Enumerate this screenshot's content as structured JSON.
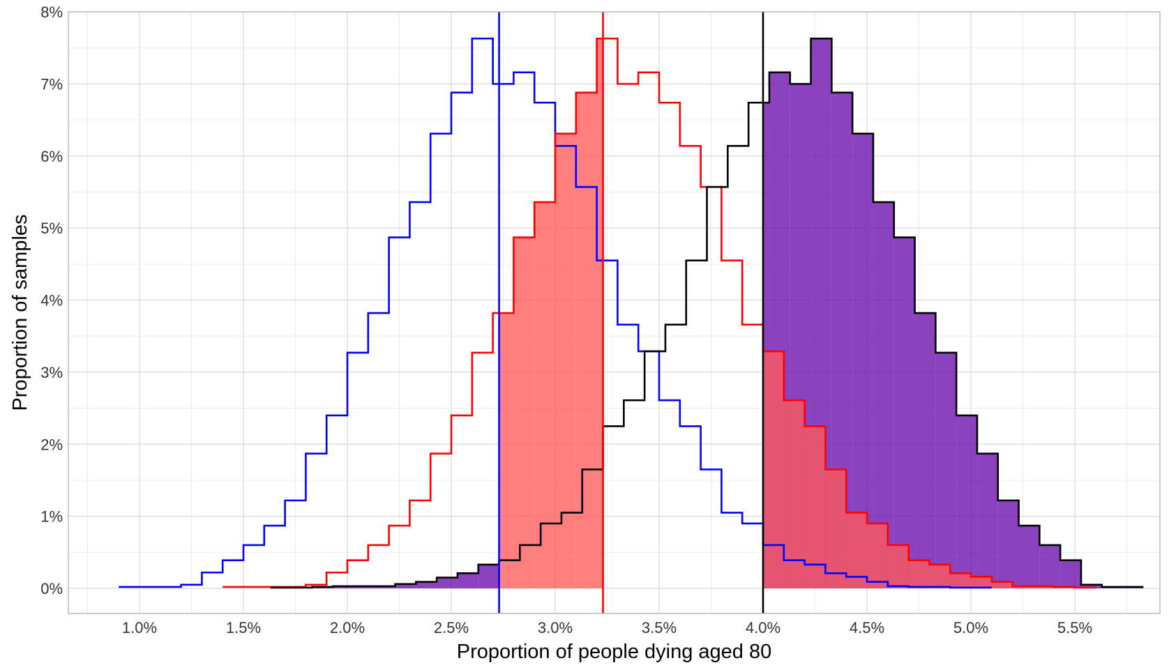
{
  "chart_data": {
    "type": "histogram",
    "title": "",
    "xlabel": "Proportion of people dying aged 80",
    "ylabel": "Proportion of samples",
    "xlim": [
      0.0075,
      0.058
    ],
    "ylim": [
      -0.0035,
      0.08
    ],
    "x_ticks": [
      0.01,
      0.015,
      0.02,
      0.025,
      0.03,
      0.035,
      0.04,
      0.045,
      0.05,
      0.055
    ],
    "x_tick_labels": [
      "1.0%",
      "1.5%",
      "2.0%",
      "2.5%",
      "3.0%",
      "3.5%",
      "4.0%",
      "4.5%",
      "5.0%",
      "5.5%"
    ],
    "y_ticks": [
      0,
      0.01,
      0.02,
      0.03,
      0.04,
      0.05,
      0.06,
      0.07,
      0.08
    ],
    "y_tick_labels": [
      "0%",
      "1%",
      "2%",
      "3%",
      "4%",
      "5%",
      "6%",
      "7%",
      "8%"
    ],
    "grid": true,
    "legend": "none",
    "bin_width": 0.001,
    "series": [
      {
        "color": "#0000ff",
        "start": 0.009,
        "values": [
          0.0002,
          0.0002,
          0.0002,
          0.0005,
          0.0022,
          0.0039,
          0.006,
          0.0087,
          0.0122,
          0.0187,
          0.024,
          0.0327,
          0.0382,
          0.0487,
          0.0536,
          0.0631,
          0.0688,
          0.0763,
          0.07,
          0.0716,
          0.0674,
          0.0614,
          0.0557,
          0.0455,
          0.0366,
          0.0329,
          0.0261,
          0.0225,
          0.0165,
          0.0105,
          0.009,
          0.006,
          0.0039,
          0.0033,
          0.0021,
          0.0016,
          0.0009,
          0.0003,
          0.0002,
          0.0002,
          0.0001,
          0.0001
        ]
      },
      {
        "color": "#ff0000",
        "start": 0.014,
        "values": [
          0.0002,
          0.0002,
          0.0002,
          0.0002,
          0.0005,
          0.0022,
          0.0039,
          0.006,
          0.0087,
          0.0122,
          0.0187,
          0.024,
          0.0327,
          0.0382,
          0.0487,
          0.0536,
          0.0631,
          0.0688,
          0.0763,
          0.07,
          0.0716,
          0.0674,
          0.0614,
          0.0557,
          0.0455,
          0.0366,
          0.0329,
          0.0261,
          0.0225,
          0.0165,
          0.0105,
          0.009,
          0.006,
          0.0039,
          0.0033,
          0.0021,
          0.0016,
          0.0009,
          0.0003,
          0.0003,
          0.0002,
          0.0001
        ]
      },
      {
        "color": "#000000",
        "start": 0.0163,
        "values": [
          0.0001,
          0.0001,
          0.0002,
          0.0003,
          0.0003,
          0.0003,
          0.0006,
          0.0009,
          0.0015,
          0.0021,
          0.0033,
          0.0039,
          0.006,
          0.009,
          0.0105,
          0.0165,
          0.0225,
          0.0261,
          0.0329,
          0.0366,
          0.0455,
          0.0557,
          0.0614,
          0.0674,
          0.0716,
          0.07,
          0.0763,
          0.0688,
          0.0631,
          0.0536,
          0.0487,
          0.0382,
          0.0327,
          0.024,
          0.0187,
          0.0122,
          0.0087,
          0.006,
          0.0039,
          0.0005,
          0.0002,
          0.0002
        ]
      }
    ],
    "vertical_lines": [
      {
        "x": 0.0273,
        "color": "#0000ff"
      },
      {
        "x": 0.0323,
        "color": "#ff0000"
      },
      {
        "x": 0.04,
        "color": "#000000"
      }
    ],
    "shaded_areas": [
      {
        "series_index": 2,
        "range": [
          0.0,
          0.0273
        ],
        "color": "#6a0dad"
      },
      {
        "series_index": 2,
        "range": [
          0.04,
          1.0
        ],
        "color": "#6a0dad"
      },
      {
        "series_index": 1,
        "range": [
          0.0273,
          0.0323
        ],
        "color": "#ff5a5a"
      },
      {
        "series_index": 1,
        "range": [
          0.04,
          1.0
        ],
        "color": "#ff5a5a"
      }
    ]
  }
}
